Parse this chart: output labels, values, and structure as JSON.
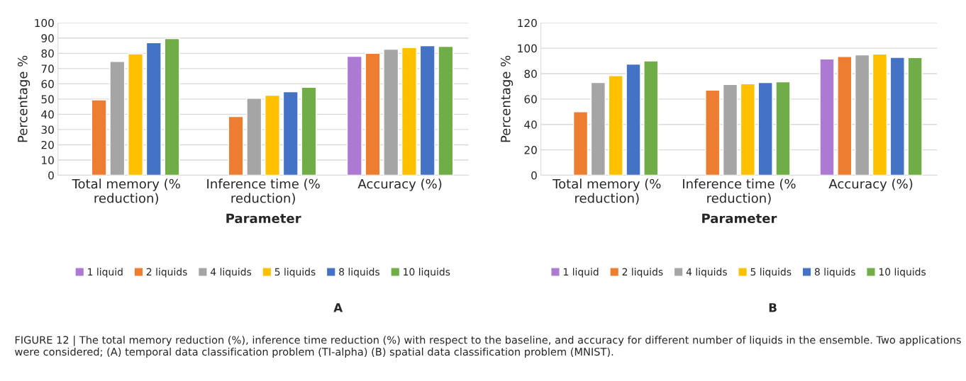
{
  "chart_data": [
    {
      "type": "bar",
      "categories": [
        "Total memory (% reduction)",
        "Inference time (% reduction)",
        "Accuracy (%)"
      ],
      "xlabel": "Parameter",
      "ylabel": "Percentage %",
      "ylim": [
        0,
        100
      ],
      "yticks": [
        0,
        10,
        20,
        30,
        40,
        50,
        60,
        70,
        80,
        90,
        100
      ],
      "grid": "y",
      "legend": "bottom",
      "series": [
        {
          "name": "1 liquid",
          "color": "#ad7ad3",
          "values": [
            null,
            null,
            78
          ]
        },
        {
          "name": "2 liquids",
          "color": "#ed7d31",
          "values": [
            49.5,
            38.5,
            80
          ]
        },
        {
          "name": "4 liquids",
          "color": "#a5a5a5",
          "values": [
            74.7,
            50.5,
            82.7
          ]
        },
        {
          "name": "5 liquids",
          "color": "#ffc000",
          "values": [
            79.7,
            52.5,
            83.8
          ]
        },
        {
          "name": "8 liquids",
          "color": "#4472c4",
          "values": [
            87,
            54.8,
            85
          ]
        },
        {
          "name": "10 liquids",
          "color": "#70ad47",
          "values": [
            89.7,
            57.7,
            84.5
          ]
        }
      ],
      "annotations": [
        "A",
        "FIGURE 12 | The total memory reduction (%), inference time reduction (%) with respect to the baseline, and accuracy for different number of liquids in the ensemble. Two applications were considered; (A) temporal data classification problem (TI-alpha) (B) spatial data classification problem (MNIST)."
      ]
    },
    {
      "type": "bar",
      "categories": [
        "Total memory (% reduction)",
        "Inference time (% reduction)",
        "Accuracy (%)"
      ],
      "xlabel": "Parameter",
      "ylabel": "Percentage %",
      "ylim": [
        0,
        120
      ],
      "yticks": [
        0,
        20,
        40,
        60,
        80,
        100,
        120
      ],
      "grid": "y",
      "legend": "bottom",
      "series": [
        {
          "name": "1 liquid",
          "color": "#ad7ad3",
          "values": [
            null,
            null,
            91.5
          ]
        },
        {
          "name": "2 liquids",
          "color": "#ed7d31",
          "values": [
            50,
            67,
            93.5
          ]
        },
        {
          "name": "4 liquids",
          "color": "#a5a5a5",
          "values": [
            73,
            71.5,
            94.8
          ]
        },
        {
          "name": "5 liquids",
          "color": "#ffc000",
          "values": [
            78.5,
            72,
            95.5
          ]
        },
        {
          "name": "8 liquids",
          "color": "#4472c4",
          "values": [
            87.5,
            73,
            92.8
          ]
        },
        {
          "name": "10 liquids",
          "color": "#70ad47",
          "values": [
            90,
            73.5,
            92.7
          ]
        }
      ],
      "annotations": [
        "B"
      ]
    }
  ]
}
